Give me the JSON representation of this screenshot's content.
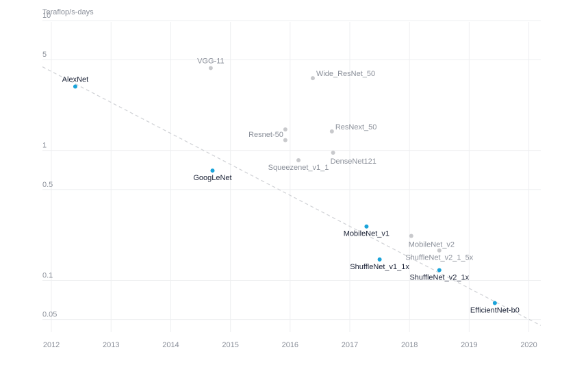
{
  "chart_data": {
    "type": "scatter",
    "title": "",
    "ylabel": "Teraflop/s-days",
    "xlabel": "",
    "yscale": "log",
    "ylim": [
      0.04,
      11
    ],
    "xlim": [
      2011.85,
      2020.2
    ],
    "x_ticks": [
      {
        "value": 2012,
        "label": "2012"
      },
      {
        "value": 2013,
        "label": "2013"
      },
      {
        "value": 2014,
        "label": "2014"
      },
      {
        "value": 2015,
        "label": "2015"
      },
      {
        "value": 2016,
        "label": "2016"
      },
      {
        "value": 2017,
        "label": "2017"
      },
      {
        "value": 2018,
        "label": "2018"
      },
      {
        "value": 2019,
        "label": "2019"
      },
      {
        "value": 2020,
        "label": "2020"
      }
    ],
    "y_ticks": [
      {
        "value": 10,
        "label": "10"
      },
      {
        "value": 5,
        "label": "5"
      },
      {
        "value": 1,
        "label": "1"
      },
      {
        "value": 0.5,
        "label": "0.5"
      },
      {
        "value": 0.1,
        "label": "0.1"
      },
      {
        "value": 0.05,
        "label": "0.05"
      }
    ],
    "trend_line": {
      "from": {
        "x": 2011.85,
        "y": 4.4
      },
      "to": {
        "x": 2020.2,
        "y": 0.045
      }
    },
    "series": [
      {
        "name": "highlighted",
        "color": "#1aa3d9",
        "label_color": "#1b2236",
        "points": [
          {
            "label": "AlexNet",
            "x": 2012.4,
            "y": 3.1,
            "anchor": "middle",
            "pos": "above"
          },
          {
            "label": "GoogLeNet",
            "x": 2014.7,
            "y": 0.7,
            "anchor": "middle",
            "pos": "below"
          },
          {
            "label": "MobileNet_v1",
            "x": 2017.28,
            "y": 0.26,
            "anchor": "middle",
            "pos": "below"
          },
          {
            "label": "ShuffleNet_v1_1x",
            "x": 2017.5,
            "y": 0.145,
            "anchor": "middle",
            "pos": "below"
          },
          {
            "label": "ShuffleNet_v2_1x",
            "x": 2018.5,
            "y": 0.12,
            "anchor": "middle",
            "pos": "below"
          },
          {
            "label": "EfficientNet-b0",
            "x": 2019.43,
            "y": 0.067,
            "anchor": "middle",
            "pos": "below"
          }
        ]
      },
      {
        "name": "other",
        "color": "#c8c9cc",
        "label_color": "#8a8f99",
        "points": [
          {
            "label": "VGG-11",
            "x": 2014.67,
            "y": 4.3,
            "anchor": "middle",
            "pos": "above"
          },
          {
            "label": "Wide_ResNet_50",
            "x": 2016.38,
            "y": 3.6,
            "anchor": "start",
            "pos": "right"
          },
          {
            "label": "Resnet-50",
            "x": 2015.92,
            "y": 1.45,
            "anchor": "end",
            "pos": "left-low"
          },
          {
            "label": "",
            "x": 2015.92,
            "y": 1.2,
            "anchor": "middle",
            "pos": "none"
          },
          {
            "label": "ResNext_50",
            "x": 2016.7,
            "y": 1.4,
            "anchor": "start",
            "pos": "right"
          },
          {
            "label": "DenseNet121",
            "x": 2016.72,
            "y": 0.96,
            "anchor": "start",
            "pos": "below-right"
          },
          {
            "label": "Squeezenet_v1_1",
            "x": 2016.14,
            "y": 0.84,
            "anchor": "middle",
            "pos": "below"
          },
          {
            "label": "MobileNet_v2",
            "x": 2018.03,
            "y": 0.22,
            "anchor": "start",
            "pos": "below-right"
          },
          {
            "label": "ShuffleNet_v2_1_5x",
            "x": 2018.5,
            "y": 0.17,
            "anchor": "middle",
            "pos": "below"
          }
        ]
      }
    ]
  }
}
